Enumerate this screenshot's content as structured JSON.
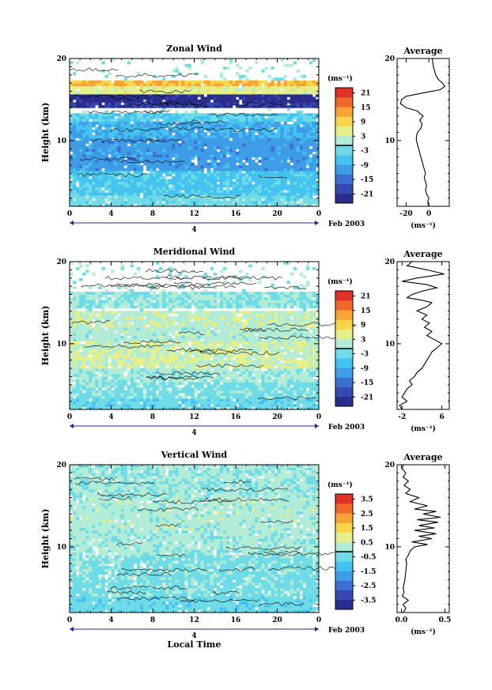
{
  "chart_data": [
    {
      "type": "heatmap",
      "title": "Zonal Wind",
      "ylabel": "Height (km)",
      "xlabel": "",
      "x_ticks": [
        "0",
        "4",
        "8",
        "12",
        "16",
        "20",
        "0"
      ],
      "x_range": [
        0,
        24
      ],
      "y_ticks": [
        "10",
        "20"
      ],
      "y_range": [
        2,
        20
      ],
      "date_day": "4",
      "date_label": "Feb 2003",
      "colorbar": {
        "unit": "(ms⁻¹)",
        "ticks": [
          "21",
          "15",
          "9",
          "3",
          "-3",
          "-9",
          "-15",
          "-21"
        ],
        "range": [
          -24,
          24
        ],
        "colors": [
          "#2a2d8c",
          "#3549b0",
          "#3b6fd1",
          "#3f9ce6",
          "#45c3f0",
          "#6fdbe6",
          "#b2ecd7",
          "#e6f08a",
          "#f8d54a",
          "#f7a335",
          "#ef6a2a",
          "#e0302a"
        ]
      },
      "field_bands": [
        {
          "from": 2,
          "to": 3.5,
          "value": -2
        },
        {
          "from": 3.5,
          "to": 6.5,
          "value": -5
        },
        {
          "from": 6.5,
          "to": 10.5,
          "value": -10
        },
        {
          "from": 10.5,
          "to": 12.5,
          "value": -8
        },
        {
          "from": 12.5,
          "to": 13.5,
          "value": -4
        },
        {
          "from": 14,
          "to": 14.8,
          "value": -20
        },
        {
          "from": 14.8,
          "to": 15.8,
          "value": -22
        },
        {
          "from": 15.8,
          "to": 16.6,
          "value": 6
        },
        {
          "from": 16.6,
          "to": 17.2,
          "value": 12
        }
      ],
      "average_panel": {
        "title": "Average",
        "x_ticks": [
          "-20",
          "0"
        ],
        "x_range": [
          -28,
          18
        ],
        "xlabel": "(ms⁻¹)",
        "y_ticks": [
          "10",
          "20"
        ],
        "y_range": [
          2,
          20
        ],
        "profile": [
          {
            "h": 2,
            "v": 0
          },
          {
            "h": 2.5,
            "v": -1
          },
          {
            "h": 3,
            "v": 0
          },
          {
            "h": 3.5,
            "v": -2
          },
          {
            "h": 4,
            "v": -3
          },
          {
            "h": 4.5,
            "v": -2
          },
          {
            "h": 5,
            "v": -3
          },
          {
            "h": 5.5,
            "v": -4
          },
          {
            "h": 6,
            "v": -3
          },
          {
            "h": 6.5,
            "v": -4
          },
          {
            "h": 7,
            "v": -5
          },
          {
            "h": 7.5,
            "v": -6
          },
          {
            "h": 8,
            "v": -7
          },
          {
            "h": 8.5,
            "v": -8
          },
          {
            "h": 9,
            "v": -9
          },
          {
            "h": 9.5,
            "v": -10
          },
          {
            "h": 10,
            "v": -11
          },
          {
            "h": 10.5,
            "v": -11
          },
          {
            "h": 11,
            "v": -10
          },
          {
            "h": 11.5,
            "v": -7
          },
          {
            "h": 12,
            "v": -6
          },
          {
            "h": 12.5,
            "v": -8
          },
          {
            "h": 13,
            "v": -5
          },
          {
            "h": 13.3,
            "v": -8
          },
          {
            "h": 13.6,
            "v": -10
          },
          {
            "h": 14,
            "v": -20
          },
          {
            "h": 14.5,
            "v": -25
          },
          {
            "h": 15,
            "v": -24
          },
          {
            "h": 15.4,
            "v": -20
          },
          {
            "h": 15.8,
            "v": -5
          },
          {
            "h": 16.2,
            "v": 10
          },
          {
            "h": 16.6,
            "v": 14
          },
          {
            "h": 17,
            "v": 12
          },
          {
            "h": 17.5,
            "v": 8
          },
          {
            "h": 18,
            "v": 6
          },
          {
            "h": 19,
            "v": 4
          },
          {
            "h": 20,
            "v": 3
          }
        ]
      }
    },
    {
      "type": "heatmap",
      "title": "Meridional Wind",
      "ylabel": "Height (km)",
      "xlabel": "",
      "x_ticks": [
        "0",
        "4",
        "8",
        "12",
        "16",
        "20",
        "0"
      ],
      "x_range": [
        0,
        24
      ],
      "y_ticks": [
        "10",
        "20"
      ],
      "y_range": [
        2,
        20
      ],
      "date_day": "4",
      "date_label": "Feb 2003",
      "colorbar": {
        "unit": "(ms⁻¹)",
        "ticks": [
          "21",
          "15",
          "9",
          "3",
          "-3",
          "-9",
          "-15",
          "-21"
        ],
        "range": [
          -24,
          24
        ],
        "colors": [
          "#2a2d8c",
          "#3549b0",
          "#3b6fd1",
          "#3f9ce6",
          "#45c3f0",
          "#6fdbe6",
          "#b2ecd7",
          "#e6f08a",
          "#f8d54a",
          "#f7a335",
          "#ef6a2a",
          "#e0302a"
        ]
      },
      "field_bands": [
        {
          "from": 2,
          "to": 3.5,
          "value": -3
        },
        {
          "from": 3.5,
          "to": 5.5,
          "value": -1
        },
        {
          "from": 5.5,
          "to": 7,
          "value": 1
        },
        {
          "from": 7,
          "to": 10.5,
          "value": 4
        },
        {
          "from": 10.5,
          "to": 12,
          "value": 2
        },
        {
          "from": 12,
          "to": 14,
          "value": 3
        },
        {
          "from": 14.5,
          "to": 16.3,
          "value": 0
        }
      ],
      "average_panel": {
        "title": "Average",
        "x_ticks": [
          "-2",
          "6"
        ],
        "x_range": [
          -3,
          7.5
        ],
        "xlabel": "(ms⁻¹)",
        "y_ticks": [
          "10",
          "20"
        ],
        "y_range": [
          2,
          20
        ],
        "profile": [
          {
            "h": 2,
            "v": -2
          },
          {
            "h": 2.5,
            "v": -2.5
          },
          {
            "h": 3,
            "v": -1
          },
          {
            "h": 3.5,
            "v": -2
          },
          {
            "h": 4,
            "v": -1.5
          },
          {
            "h": 4.5,
            "v": -1
          },
          {
            "h": 5,
            "v": 0
          },
          {
            "h": 5.5,
            "v": -0.5
          },
          {
            "h": 6,
            "v": 0.5
          },
          {
            "h": 6.5,
            "v": 1
          },
          {
            "h": 7,
            "v": 2
          },
          {
            "h": 7.5,
            "v": 2.5
          },
          {
            "h": 8,
            "v": 3
          },
          {
            "h": 8.5,
            "v": 3.5
          },
          {
            "h": 9,
            "v": 4
          },
          {
            "h": 9.5,
            "v": 5
          },
          {
            "h": 10,
            "v": 6
          },
          {
            "h": 10.5,
            "v": 4.5
          },
          {
            "h": 11,
            "v": 3
          },
          {
            "h": 11.5,
            "v": 4
          },
          {
            "h": 12,
            "v": 2.5
          },
          {
            "h": 12.5,
            "v": 3.5
          },
          {
            "h": 13,
            "v": 2
          },
          {
            "h": 13.5,
            "v": 3
          },
          {
            "h": 14,
            "v": 1
          },
          {
            "h": 14.5,
            "v": 3
          },
          {
            "h": 15,
            "v": 4
          },
          {
            "h": 15.3,
            "v": 2
          },
          {
            "h": 15.6,
            "v": -1
          },
          {
            "h": 16,
            "v": 0
          },
          {
            "h": 16.4,
            "v": 2
          },
          {
            "h": 16.8,
            "v": 5
          },
          {
            "h": 17.2,
            "v": 3
          },
          {
            "h": 17.6,
            "v": -2
          },
          {
            "h": 18,
            "v": 1
          },
          {
            "h": 18.5,
            "v": 6.5
          },
          {
            "h": 19,
            "v": 3
          },
          {
            "h": 19.5,
            "v": -1
          },
          {
            "h": 20,
            "v": 0
          }
        ]
      }
    },
    {
      "type": "heatmap",
      "title": "Vertical Wind",
      "ylabel": "Height (km)",
      "xlabel": "Local Time",
      "x_ticks": [
        "0",
        "4",
        "8",
        "12",
        "16",
        "20",
        "0"
      ],
      "x_range": [
        0,
        24
      ],
      "y_ticks": [
        "10",
        "20"
      ],
      "y_range": [
        2,
        20
      ],
      "date_day": "4",
      "date_label": "Feb 2003",
      "colorbar": {
        "unit": "(ms⁻¹)",
        "ticks": [
          "3.5",
          "2.5",
          "1.5",
          "0.5",
          "-0.5",
          "-1.5",
          "-2.5",
          "-3.5"
        ],
        "range": [
          -4,
          4
        ],
        "colors": [
          "#2a2d8c",
          "#3549b0",
          "#3b6fd1",
          "#3f9ce6",
          "#45c3f0",
          "#6fdbe6",
          "#b2ecd7",
          "#e6f08a",
          "#f8d54a",
          "#f7a335",
          "#ef6a2a",
          "#e0302a"
        ]
      },
      "field_bands": [
        {
          "from": 2,
          "to": 4,
          "value": -0.4
        },
        {
          "from": 4,
          "to": 9,
          "value": -0.2
        },
        {
          "from": 9,
          "to": 12,
          "value": 0.2
        },
        {
          "from": 12,
          "to": 16,
          "value": 0.3
        },
        {
          "from": 16,
          "to": 20,
          "value": 0.1
        }
      ],
      "average_panel": {
        "title": "Average",
        "x_ticks": [
          "0.0",
          "0.5"
        ],
        "x_range": [
          -0.05,
          0.55
        ],
        "xlabel": "(ms⁻¹)",
        "y_ticks": [
          "10",
          "20"
        ],
        "y_range": [
          2,
          20
        ],
        "profile": [
          {
            "h": 2,
            "v": 0.02
          },
          {
            "h": 2.5,
            "v": 0.05
          },
          {
            "h": 3,
            "v": 0.02
          },
          {
            "h": 3.5,
            "v": 0.08
          },
          {
            "h": 4,
            "v": 0.01
          },
          {
            "h": 4.5,
            "v": 0.03
          },
          {
            "h": 5,
            "v": 0.02
          },
          {
            "h": 6,
            "v": 0.04
          },
          {
            "h": 7,
            "v": 0.05
          },
          {
            "h": 8,
            "v": 0.06
          },
          {
            "h": 8.5,
            "v": 0.05
          },
          {
            "h": 9,
            "v": 0.08
          },
          {
            "h": 9.5,
            "v": 0.1
          },
          {
            "h": 10,
            "v": 0.15
          },
          {
            "h": 10.3,
            "v": 0.3
          },
          {
            "h": 10.6,
            "v": 0.12
          },
          {
            "h": 11,
            "v": 0.35
          },
          {
            "h": 11.3,
            "v": 0.2
          },
          {
            "h": 11.6,
            "v": 0.4
          },
          {
            "h": 12,
            "v": 0.15
          },
          {
            "h": 12.3,
            "v": 0.38
          },
          {
            "h": 12.6,
            "v": 0.2
          },
          {
            "h": 13,
            "v": 0.42
          },
          {
            "h": 13.3,
            "v": 0.18
          },
          {
            "h": 13.6,
            "v": 0.45
          },
          {
            "h": 14,
            "v": 0.25
          },
          {
            "h": 14.3,
            "v": 0.4
          },
          {
            "h": 14.6,
            "v": 0.15
          },
          {
            "h": 15,
            "v": 0.3
          },
          {
            "h": 15.5,
            "v": 0.1
          },
          {
            "h": 16,
            "v": 0.2
          },
          {
            "h": 16.5,
            "v": 0.05
          },
          {
            "h": 17,
            "v": 0.1
          },
          {
            "h": 17.5,
            "v": 0.03
          },
          {
            "h": 18,
            "v": 0.08
          },
          {
            "h": 18.5,
            "v": 0.02
          },
          {
            "h": 19,
            "v": 0.05
          },
          {
            "h": 19.5,
            "v": 0.01
          },
          {
            "h": 20,
            "v": 0.02
          }
        ]
      }
    }
  ]
}
